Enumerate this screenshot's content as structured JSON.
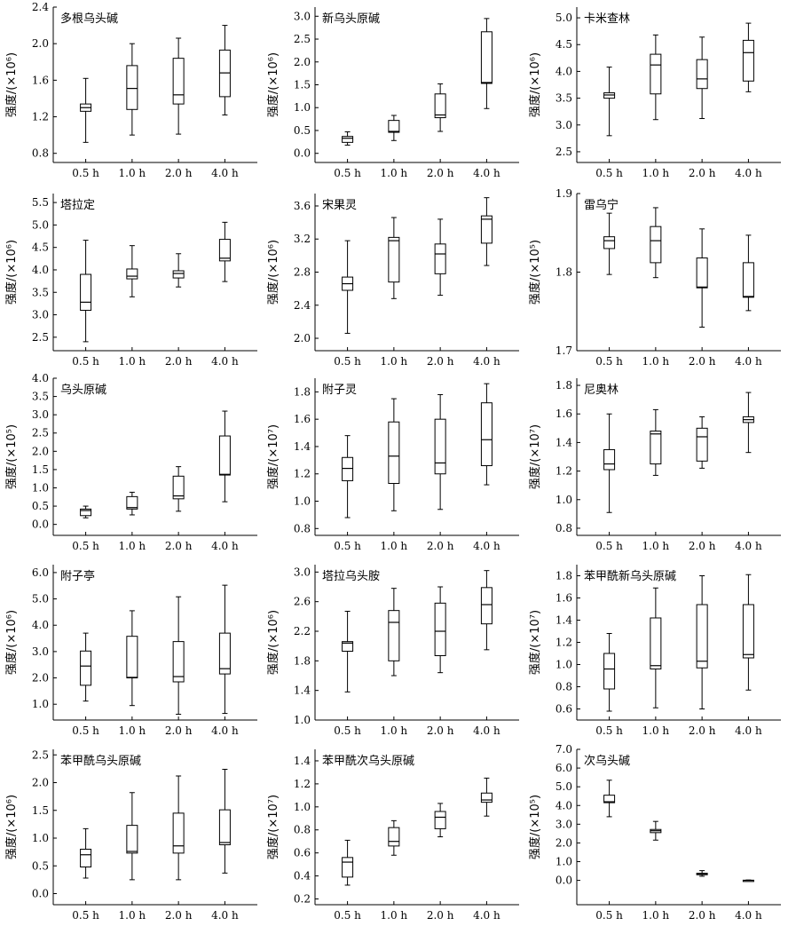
{
  "figure": {
    "columns": 3,
    "rows": 5
  },
  "chart_data": [
    {
      "type": "box",
      "title": "多根乌头碱",
      "ylabel": "强度/(×10⁶)",
      "categories": [
        "0.5 h",
        "1.0 h",
        "2.0 h",
        "4.0 h"
      ],
      "yticks": [
        "0.8",
        "1.2",
        "1.6",
        "2.0",
        "2.4"
      ],
      "ylim": [
        0.7,
        2.4
      ],
      "boxes": [
        {
          "min": 0.92,
          "q1": 1.26,
          "median": 1.3,
          "q3": 1.34,
          "max": 1.62
        },
        {
          "min": 1.0,
          "q1": 1.28,
          "median": 1.51,
          "q3": 1.76,
          "max": 2.0
        },
        {
          "min": 1.01,
          "q1": 1.34,
          "median": 1.44,
          "q3": 1.84,
          "max": 2.06
        },
        {
          "min": 1.22,
          "q1": 1.42,
          "median": 1.68,
          "q3": 1.93,
          "max": 2.2
        }
      ]
    },
    {
      "type": "box",
      "title": "新乌头原碱",
      "ylabel": "强度/(×10⁶)",
      "categories": [
        "0.5 h",
        "1.0 h",
        "2.0 h",
        "4.0 h"
      ],
      "yticks": [
        "0.0",
        "0.5",
        "1.0",
        "1.5",
        "2.0",
        "2.5",
        "3.0"
      ],
      "ylim": [
        -0.2,
        3.2
      ],
      "boxes": [
        {
          "min": 0.18,
          "q1": 0.24,
          "median": 0.33,
          "q3": 0.37,
          "max": 0.47
        },
        {
          "min": 0.28,
          "q1": 0.46,
          "median": 0.48,
          "q3": 0.72,
          "max": 0.83
        },
        {
          "min": 0.48,
          "q1": 0.78,
          "median": 0.84,
          "q3": 1.3,
          "max": 1.52
        },
        {
          "min": 0.98,
          "q1": 1.53,
          "median": 1.55,
          "q3": 2.66,
          "max": 2.95
        }
      ]
    },
    {
      "type": "box",
      "title": "卡米查林",
      "ylabel": "强度/(×10⁶)",
      "categories": [
        "0.5 h",
        "1.0 h",
        "2.0 h",
        "4.0 h"
      ],
      "yticks": [
        "2.5",
        "3.0",
        "3.5",
        "4.0",
        "4.5",
        "5.0"
      ],
      "ylim": [
        2.3,
        5.2
      ],
      "boxes": [
        {
          "min": 2.8,
          "q1": 3.5,
          "median": 3.56,
          "q3": 3.6,
          "max": 4.08
        },
        {
          "min": 3.1,
          "q1": 3.58,
          "median": 4.12,
          "q3": 4.32,
          "max": 4.68
        },
        {
          "min": 3.12,
          "q1": 3.68,
          "median": 3.86,
          "q3": 4.22,
          "max": 4.64
        },
        {
          "min": 3.62,
          "q1": 3.82,
          "median": 4.35,
          "q3": 4.58,
          "max": 4.9
        }
      ]
    },
    {
      "type": "box",
      "title": "塔拉定",
      "ylabel": "强度/(×10⁶)",
      "categories": [
        "0.5 h",
        "1.0 h",
        "2.0 h",
        "4.0 h"
      ],
      "yticks": [
        "2.5",
        "3.0",
        "3.5",
        "4.0",
        "4.5",
        "5.0",
        "5.5"
      ],
      "ylim": [
        2.2,
        5.7
      ],
      "boxes": [
        {
          "min": 2.4,
          "q1": 3.1,
          "median": 3.28,
          "q3": 3.9,
          "max": 4.66
        },
        {
          "min": 3.4,
          "q1": 3.8,
          "median": 3.86,
          "q3": 4.02,
          "max": 4.54
        },
        {
          "min": 3.62,
          "q1": 3.82,
          "median": 3.92,
          "q3": 3.98,
          "max": 4.36
        },
        {
          "min": 3.74,
          "q1": 4.2,
          "median": 4.26,
          "q3": 4.68,
          "max": 5.06
        }
      ]
    },
    {
      "type": "box",
      "title": "宋果灵",
      "ylabel": "强度/(×10⁶)",
      "categories": [
        "0.5 h",
        "1.0 h",
        "2.0 h",
        "4.0 h"
      ],
      "yticks": [
        "2.0",
        "2.4",
        "2.8",
        "3.2",
        "3.6"
      ],
      "ylim": [
        1.85,
        3.75
      ],
      "boxes": [
        {
          "min": 2.06,
          "q1": 2.58,
          "median": 2.66,
          "q3": 2.74,
          "max": 3.18
        },
        {
          "min": 2.48,
          "q1": 2.68,
          "median": 3.18,
          "q3": 3.22,
          "max": 3.46
        },
        {
          "min": 2.52,
          "q1": 2.78,
          "median": 3.02,
          "q3": 3.14,
          "max": 3.44
        },
        {
          "min": 2.88,
          "q1": 3.15,
          "median": 3.44,
          "q3": 3.48,
          "max": 3.7
        }
      ]
    },
    {
      "type": "box",
      "title": "雷乌宁",
      "ylabel": "强度/(×10⁵)",
      "categories": [
        "0.5 h",
        "1.0 h",
        "2.0 h",
        "4.0 h"
      ],
      "yticks": [
        "1.7",
        "1.8",
        "1.9"
      ],
      "ylim": [
        1.7,
        1.9
      ],
      "boxes": [
        {
          "min": 1.797,
          "q1": 1.83,
          "median": 1.84,
          "q3": 1.845,
          "max": 1.875
        },
        {
          "min": 1.793,
          "q1": 1.812,
          "median": 1.84,
          "q3": 1.858,
          "max": 1.882
        },
        {
          "min": 1.73,
          "q1": 1.78,
          "median": 1.781,
          "q3": 1.818,
          "max": 1.855
        },
        {
          "min": 1.751,
          "q1": 1.768,
          "median": 1.769,
          "q3": 1.812,
          "max": 1.847
        }
      ]
    },
    {
      "type": "box",
      "title": "乌头原碱",
      "ylabel": "强度/(×10⁵)",
      "categories": [
        "0.5 h",
        "1.0 h",
        "2.0 h",
        "4.0 h"
      ],
      "yticks": [
        "0.0",
        "0.5",
        "1.0",
        "1.5",
        "2.0",
        "2.5",
        "3.0",
        "3.5",
        "4.0"
      ],
      "ylim": [
        -0.3,
        4.0
      ],
      "boxes": [
        {
          "min": 0.18,
          "q1": 0.24,
          "median": 0.38,
          "q3": 0.42,
          "max": 0.5
        },
        {
          "min": 0.26,
          "q1": 0.42,
          "median": 0.46,
          "q3": 0.76,
          "max": 0.88
        },
        {
          "min": 0.36,
          "q1": 0.7,
          "median": 0.78,
          "q3": 1.32,
          "max": 1.58
        },
        {
          "min": 0.62,
          "q1": 1.35,
          "median": 1.37,
          "q3": 2.42,
          "max": 3.1
        }
      ]
    },
    {
      "type": "box",
      "title": "附子灵",
      "ylabel": "强度/(×10⁷)",
      "categories": [
        "0.5 h",
        "1.0 h",
        "2.0 h",
        "4.0 h"
      ],
      "yticks": [
        "0.8",
        "1.0",
        "1.2",
        "1.4",
        "1.6",
        "1.8"
      ],
      "ylim": [
        0.75,
        1.9
      ],
      "boxes": [
        {
          "min": 0.88,
          "q1": 1.15,
          "median": 1.24,
          "q3": 1.32,
          "max": 1.48
        },
        {
          "min": 0.93,
          "q1": 1.13,
          "median": 1.33,
          "q3": 1.58,
          "max": 1.75
        },
        {
          "min": 0.94,
          "q1": 1.2,
          "median": 1.28,
          "q3": 1.6,
          "max": 1.78
        },
        {
          "min": 1.12,
          "q1": 1.26,
          "median": 1.45,
          "q3": 1.72,
          "max": 1.86
        }
      ]
    },
    {
      "type": "box",
      "title": "尼奥林",
      "ylabel": "强度/(×10⁷)",
      "categories": [
        "0.5 h",
        "1.0 h",
        "2.0 h",
        "4.0 h"
      ],
      "yticks": [
        "0.8",
        "1.0",
        "1.2",
        "1.4",
        "1.6",
        "1.8"
      ],
      "ylim": [
        0.75,
        1.85
      ],
      "boxes": [
        {
          "min": 0.91,
          "q1": 1.21,
          "median": 1.25,
          "q3": 1.35,
          "max": 1.6
        },
        {
          "min": 1.17,
          "q1": 1.25,
          "median": 1.46,
          "q3": 1.48,
          "max": 1.63
        },
        {
          "min": 1.22,
          "q1": 1.27,
          "median": 1.44,
          "q3": 1.5,
          "max": 1.58
        },
        {
          "min": 1.33,
          "q1": 1.54,
          "median": 1.56,
          "q3": 1.58,
          "max": 1.75
        }
      ]
    },
    {
      "type": "box",
      "title": "附子亭",
      "ylabel": "强度/(×10⁶)",
      "categories": [
        "0.5 h",
        "1.0 h",
        "2.0 h",
        "4.0 h"
      ],
      "yticks": [
        "1.0",
        "2.0",
        "3.0",
        "4.0",
        "5.0",
        "6.0"
      ],
      "ylim": [
        0.4,
        6.3
      ],
      "boxes": [
        {
          "min": 1.12,
          "q1": 1.72,
          "median": 2.45,
          "q3": 3.02,
          "max": 3.7
        },
        {
          "min": 0.95,
          "q1": 2.0,
          "median": 2.02,
          "q3": 3.58,
          "max": 4.55
        },
        {
          "min": 0.62,
          "q1": 1.85,
          "median": 2.05,
          "q3": 3.38,
          "max": 5.08
        },
        {
          "min": 0.65,
          "q1": 2.15,
          "median": 2.35,
          "q3": 3.7,
          "max": 5.52
        }
      ]
    },
    {
      "type": "box",
      "title": "塔拉乌头胺",
      "ylabel": "强度/(×10⁶)",
      "categories": [
        "0.5 h",
        "1.0 h",
        "2.0 h",
        "4.0 h"
      ],
      "yticks": [
        "1.0",
        "1.4",
        "1.8",
        "2.2",
        "2.6",
        "3.0"
      ],
      "ylim": [
        1.0,
        3.1
      ],
      "boxes": [
        {
          "min": 1.38,
          "q1": 1.93,
          "median": 2.04,
          "q3": 2.06,
          "max": 2.47
        },
        {
          "min": 1.6,
          "q1": 1.8,
          "median": 2.32,
          "q3": 2.48,
          "max": 2.78
        },
        {
          "min": 1.64,
          "q1": 1.87,
          "median": 2.2,
          "q3": 2.58,
          "max": 2.8
        },
        {
          "min": 1.95,
          "q1": 2.3,
          "median": 2.56,
          "q3": 2.79,
          "max": 3.02
        }
      ]
    },
    {
      "type": "box",
      "title": "苯甲酰新乌头原碱",
      "ylabel": "强度/(×10⁷)",
      "categories": [
        "0.5 h",
        "1.0 h",
        "2.0 h",
        "4.0 h"
      ],
      "yticks": [
        "0.6",
        "0.8",
        "1.0",
        "1.2",
        "1.4",
        "1.6",
        "1.8"
      ],
      "ylim": [
        0.5,
        1.9
      ],
      "boxes": [
        {
          "min": 0.58,
          "q1": 0.78,
          "median": 0.96,
          "q3": 1.1,
          "max": 1.28
        },
        {
          "min": 0.61,
          "q1": 0.96,
          "median": 0.99,
          "q3": 1.42,
          "max": 1.69
        },
        {
          "min": 0.6,
          "q1": 0.97,
          "median": 1.03,
          "q3": 1.54,
          "max": 1.8
        },
        {
          "min": 0.77,
          "q1": 1.06,
          "median": 1.09,
          "q3": 1.54,
          "max": 1.81
        }
      ]
    },
    {
      "type": "box",
      "title": "苯甲酰乌头原碱",
      "ylabel": "强度/(×10⁶)",
      "categories": [
        "0.5 h",
        "1.0 h",
        "2.0 h",
        "4.0 h"
      ],
      "yticks": [
        "0.0",
        "0.5",
        "1.0",
        "1.5",
        "2.0",
        "2.5"
      ],
      "ylim": [
        -0.2,
        2.6
      ],
      "boxes": [
        {
          "min": 0.28,
          "q1": 0.48,
          "median": 0.7,
          "q3": 0.8,
          "max": 1.17
        },
        {
          "min": 0.25,
          "q1": 0.73,
          "median": 0.76,
          "q3": 1.23,
          "max": 1.82
        },
        {
          "min": 0.25,
          "q1": 0.73,
          "median": 0.86,
          "q3": 1.45,
          "max": 2.12
        },
        {
          "min": 0.37,
          "q1": 0.88,
          "median": 0.92,
          "q3": 1.51,
          "max": 2.24
        }
      ]
    },
    {
      "type": "box",
      "title": "苯甲酰次乌头原碱",
      "ylabel": "强度/(×10⁷)",
      "categories": [
        "0.5 h",
        "1.0 h",
        "2.0 h",
        "4.0 h"
      ],
      "yticks": [
        "0.2",
        "0.4",
        "0.6",
        "0.8",
        "1.0",
        "1.2",
        "1.4"
      ],
      "ylim": [
        0.15,
        1.5
      ],
      "boxes": [
        {
          "min": 0.32,
          "q1": 0.39,
          "median": 0.52,
          "q3": 0.56,
          "max": 0.71
        },
        {
          "min": 0.58,
          "q1": 0.66,
          "median": 0.7,
          "q3": 0.82,
          "max": 0.88
        },
        {
          "min": 0.74,
          "q1": 0.81,
          "median": 0.91,
          "q3": 0.96,
          "max": 1.03
        },
        {
          "min": 0.92,
          "q1": 1.04,
          "median": 1.06,
          "q3": 1.12,
          "max": 1.25
        }
      ]
    },
    {
      "type": "box",
      "title": "次乌头碱",
      "ylabel": "强度/(×10⁵)",
      "categories": [
        "0.5 h",
        "1.0 h",
        "2.0 h",
        "4.0 h"
      ],
      "yticks": [
        "0.0",
        "1.0",
        "2.0",
        "3.0",
        "4.0",
        "5.0",
        "6.0",
        "7.0"
      ],
      "ylim": [
        -1.3,
        7.0
      ],
      "boxes": [
        {
          "min": 3.4,
          "q1": 4.15,
          "median": 4.2,
          "q3": 4.55,
          "max": 5.35
        },
        {
          "min": 2.15,
          "q1": 2.55,
          "median": 2.65,
          "q3": 2.72,
          "max": 3.15
        },
        {
          "min": 0.22,
          "q1": 0.3,
          "median": 0.35,
          "q3": 0.38,
          "max": 0.52
        },
        {
          "min": 0.0,
          "q1": 0.0,
          "median": 0.0,
          "q3": 0.01,
          "max": 0.02
        }
      ]
    }
  ]
}
